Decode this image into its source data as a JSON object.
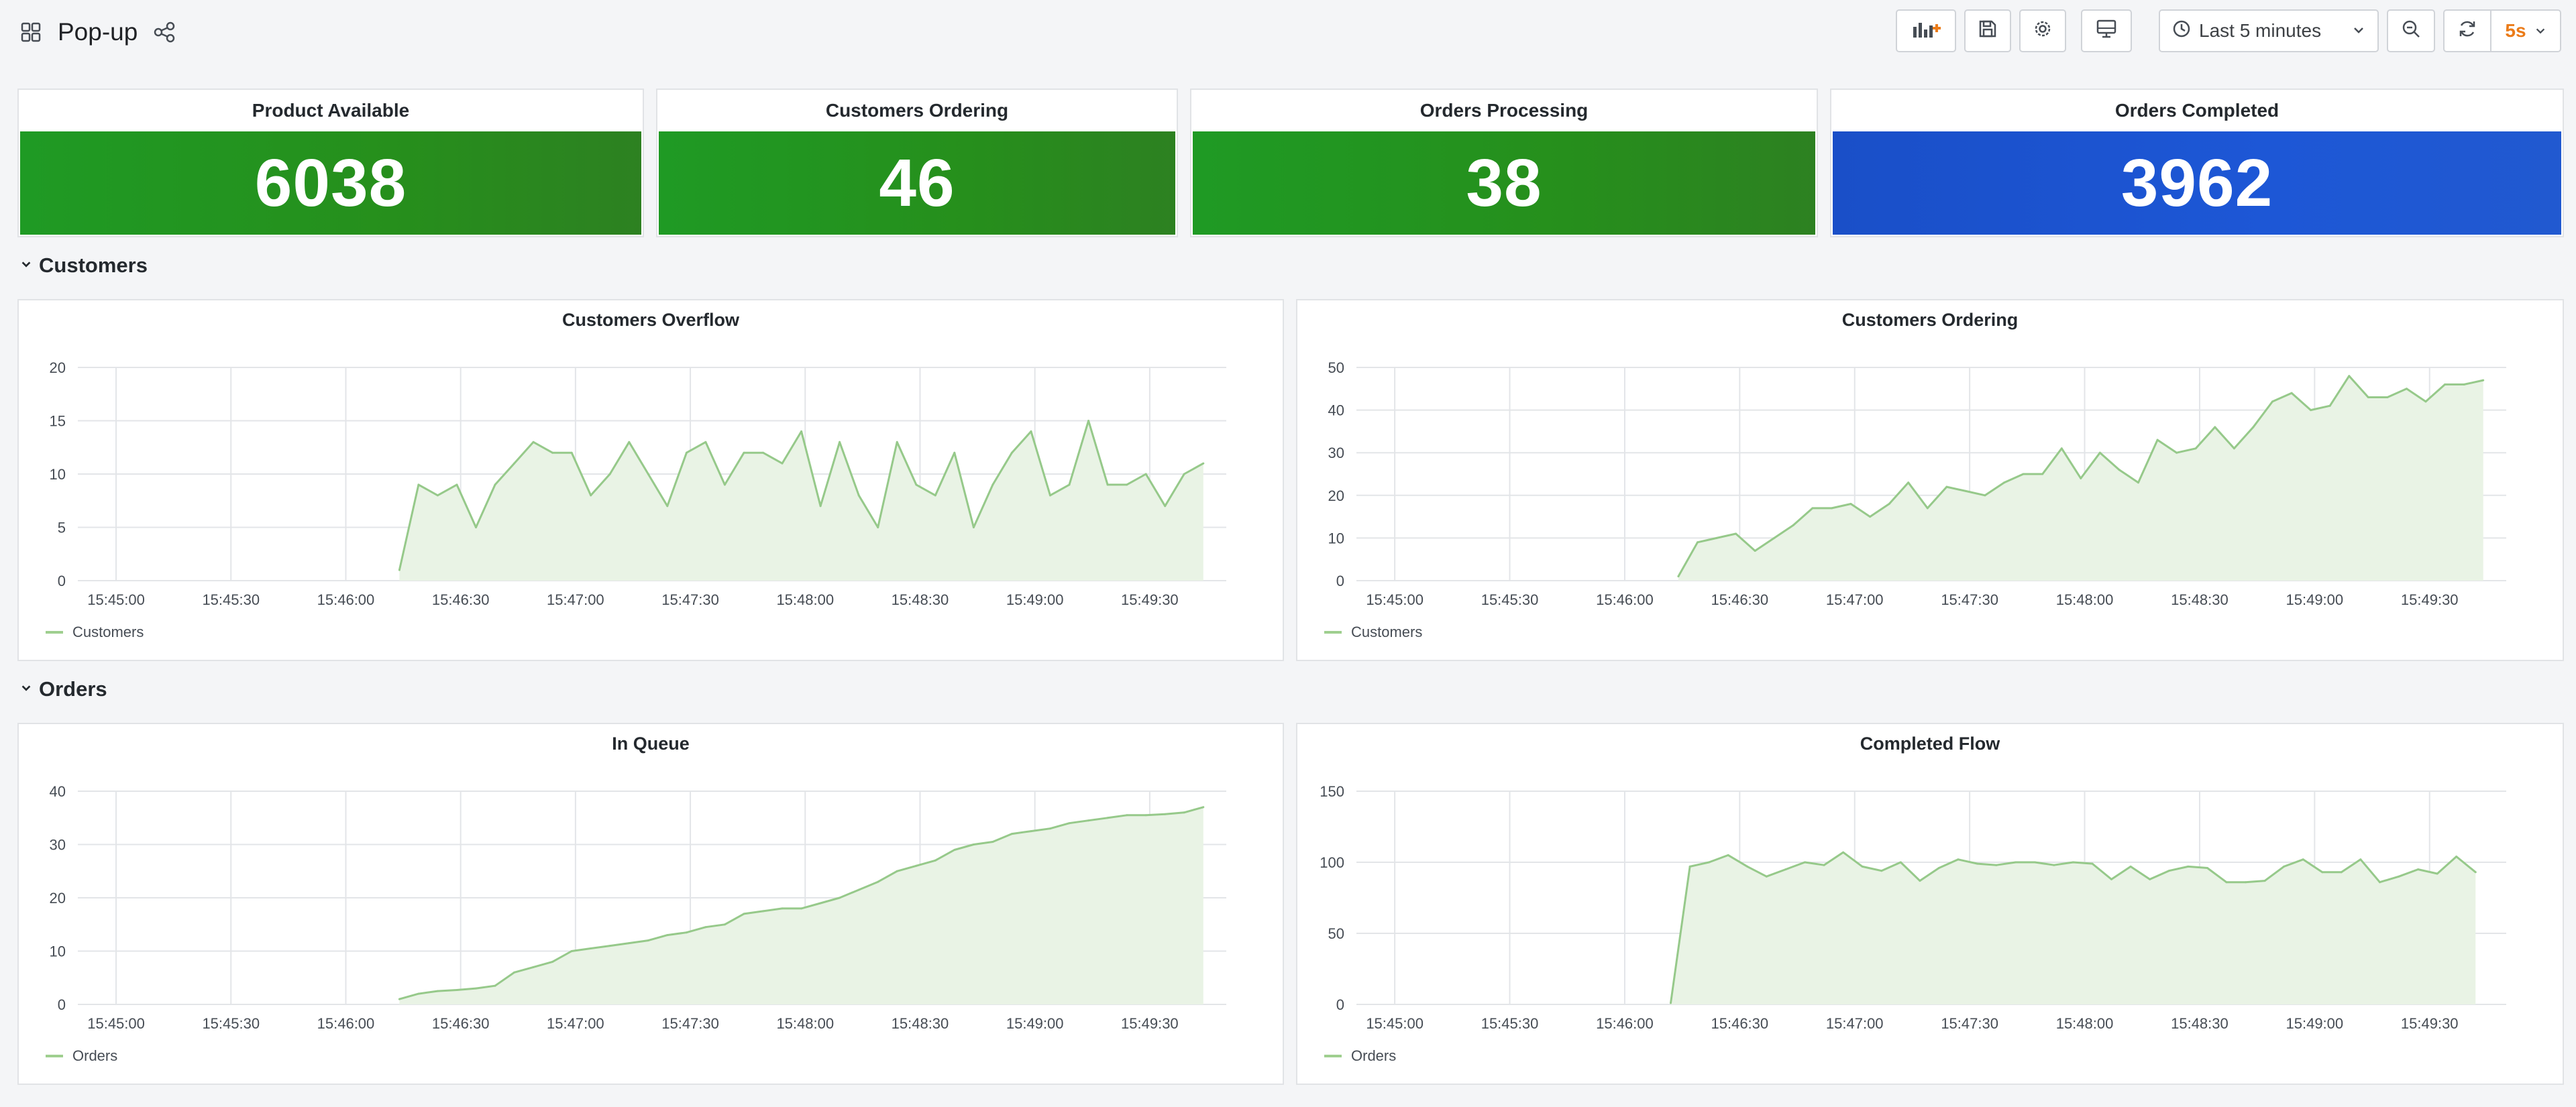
{
  "app": {
    "title": "Pop-up",
    "icons": {
      "menu": "dashboard-grid-icon",
      "share": "share-icon"
    }
  },
  "toolbar": {
    "add_panel_icon": "add-panel-icon",
    "save_icon": "save-icon",
    "settings_icon": "gear-icon",
    "tv_icon": "tv-mode-icon",
    "time_range": "Last 5 minutes",
    "zoom_icon": "zoom-out-icon",
    "refresh_icon": "refresh-icon",
    "refresh_interval": "5s"
  },
  "stats": [
    {
      "title": "Product Available",
      "value": "6038",
      "color": "#1f9a24"
    },
    {
      "title": "Customers Ordering",
      "value": "46",
      "color": "#1f9a24"
    },
    {
      "title": "Orders Processing",
      "value": "38",
      "color": "#1f9a24"
    },
    {
      "title": "Orders Completed",
      "value": "3962",
      "color": "#1a4fc8"
    }
  ],
  "rows": {
    "customers": "Customers",
    "orders": "Orders"
  },
  "colors": {
    "series_line": "#96c98a",
    "series_fill": "#e9f3e5",
    "grid": "#e3e5e8"
  },
  "panels": {
    "customers_overflow": {
      "title": "Customers Overflow",
      "legend": "Customers"
    },
    "customers_ordering": {
      "title": "Customers Ordering",
      "legend": "Customers"
    },
    "in_queue": {
      "title": "In Queue",
      "legend": "Orders"
    },
    "completed_flow": {
      "title": "Completed Flow",
      "legend": "Orders"
    }
  },
  "chart_data": [
    {
      "type": "area",
      "title": "Customers Overflow",
      "xlabel": "",
      "ylabel": "",
      "x_ticks": [
        "15:45:00",
        "15:45:30",
        "15:46:00",
        "15:46:30",
        "15:47:00",
        "15:47:30",
        "15:48:00",
        "15:48:30",
        "15:49:00",
        "15:49:30"
      ],
      "y_ticks": [
        0,
        5,
        10,
        15,
        20
      ],
      "xlim": [
        "15:44:50",
        "15:49:50"
      ],
      "ylim": [
        0,
        20
      ],
      "grid": true,
      "legend_position": "bottom-left",
      "series": [
        {
          "name": "Customers",
          "x": [
            "15:46:14",
            "15:46:19",
            "15:46:24",
            "15:46:29",
            "15:46:34",
            "15:46:39",
            "15:46:44",
            "15:46:49",
            "15:46:54",
            "15:46:59",
            "15:47:04",
            "15:47:09",
            "15:47:14",
            "15:47:19",
            "15:47:24",
            "15:47:29",
            "15:47:34",
            "15:47:39",
            "15:47:44",
            "15:47:49",
            "15:47:54",
            "15:47:59",
            "15:48:04",
            "15:48:09",
            "15:48:14",
            "15:48:19",
            "15:48:24",
            "15:48:29",
            "15:48:34",
            "15:48:39",
            "15:48:44",
            "15:48:49",
            "15:48:54",
            "15:48:59",
            "15:49:04",
            "15:49:09",
            "15:49:14",
            "15:49:19",
            "15:49:24",
            "15:49:29",
            "15:49:34",
            "15:49:39",
            "15:49:44"
          ],
          "values": [
            1,
            9,
            8,
            9,
            5,
            9,
            11,
            13,
            12,
            12,
            8,
            10,
            13,
            10,
            7,
            12,
            13,
            9,
            12,
            12,
            11,
            14,
            7,
            13,
            8,
            5,
            13,
            9,
            8,
            12,
            5,
            9,
            12,
            14,
            8,
            9,
            15,
            9,
            9,
            10,
            7,
            10,
            11
          ]
        }
      ]
    },
    {
      "type": "area",
      "title": "Customers Ordering",
      "xlabel": "",
      "ylabel": "",
      "x_ticks": [
        "15:45:00",
        "15:45:30",
        "15:46:00",
        "15:46:30",
        "15:47:00",
        "15:47:30",
        "15:48:00",
        "15:48:30",
        "15:49:00",
        "15:49:30"
      ],
      "y_ticks": [
        0,
        10,
        20,
        30,
        40,
        50
      ],
      "xlim": [
        "15:44:50",
        "15:49:50"
      ],
      "ylim": [
        0,
        50
      ],
      "grid": true,
      "legend_position": "bottom-left",
      "series": [
        {
          "name": "Customers",
          "x": [
            "15:46:14",
            "15:46:19",
            "15:46:24",
            "15:46:29",
            "15:46:34",
            "15:46:39",
            "15:46:44",
            "15:46:49",
            "15:46:54",
            "15:46:59",
            "15:47:04",
            "15:47:09",
            "15:47:14",
            "15:47:19",
            "15:47:24",
            "15:47:29",
            "15:47:34",
            "15:47:39",
            "15:47:44",
            "15:47:49",
            "15:47:54",
            "15:47:59",
            "15:48:04",
            "15:48:09",
            "15:48:14",
            "15:48:19",
            "15:48:24",
            "15:48:29",
            "15:48:34",
            "15:48:39",
            "15:48:44",
            "15:48:49",
            "15:48:54",
            "15:48:59",
            "15:49:04",
            "15:49:09",
            "15:49:14",
            "15:49:19",
            "15:49:24",
            "15:49:29",
            "15:49:34",
            "15:49:39",
            "15:49:44"
          ],
          "values": [
            1,
            9,
            10,
            11,
            7,
            10,
            13,
            17,
            17,
            18,
            15,
            18,
            23,
            17,
            22,
            21,
            20,
            23,
            25,
            25,
            31,
            24,
            30,
            26,
            23,
            33,
            30,
            31,
            36,
            31,
            36,
            42,
            44,
            40,
            41,
            48,
            43,
            43,
            45,
            42,
            46,
            46,
            47
          ]
        }
      ]
    },
    {
      "type": "area",
      "title": "In Queue",
      "xlabel": "",
      "ylabel": "",
      "x_ticks": [
        "15:45:00",
        "15:45:30",
        "15:46:00",
        "15:46:30",
        "15:47:00",
        "15:47:30",
        "15:48:00",
        "15:48:30",
        "15:49:00",
        "15:49:30"
      ],
      "y_ticks": [
        0,
        10,
        20,
        30,
        40
      ],
      "xlim": [
        "15:44:50",
        "15:49:50"
      ],
      "ylim": [
        0,
        40
      ],
      "grid": true,
      "legend_position": "bottom-left",
      "series": [
        {
          "name": "Orders",
          "x": [
            "15:46:14",
            "15:46:19",
            "15:46:24",
            "15:46:29",
            "15:46:34",
            "15:46:39",
            "15:46:44",
            "15:46:49",
            "15:46:54",
            "15:46:59",
            "15:47:04",
            "15:47:09",
            "15:47:14",
            "15:47:19",
            "15:47:24",
            "15:47:29",
            "15:47:34",
            "15:47:39",
            "15:47:44",
            "15:47:49",
            "15:47:54",
            "15:47:59",
            "15:48:04",
            "15:48:09",
            "15:48:14",
            "15:48:19",
            "15:48:24",
            "15:48:29",
            "15:48:34",
            "15:48:39",
            "15:48:44",
            "15:48:49",
            "15:48:54",
            "15:48:59",
            "15:49:04",
            "15:49:09",
            "15:49:14",
            "15:49:19",
            "15:49:24",
            "15:49:29",
            "15:49:34",
            "15:49:39",
            "15:49:44"
          ],
          "values": [
            1,
            2,
            2.5,
            2.7,
            3,
            3.5,
            6,
            7,
            8,
            10,
            10.5,
            11,
            11.5,
            12,
            13,
            13.5,
            14.5,
            15,
            17,
            17.5,
            18,
            18,
            19,
            20,
            21.5,
            23,
            25,
            26,
            27,
            29,
            30,
            30.5,
            32,
            32.5,
            33,
            34,
            34.5,
            35,
            35.5,
            35.5,
            35.7,
            36,
            37
          ]
        }
      ]
    },
    {
      "type": "area",
      "title": "Completed Flow",
      "xlabel": "",
      "ylabel": "",
      "x_ticks": [
        "15:45:00",
        "15:45:30",
        "15:46:00",
        "15:46:30",
        "15:47:00",
        "15:47:30",
        "15:48:00",
        "15:48:30",
        "15:49:00",
        "15:49:30"
      ],
      "y_ticks": [
        0,
        50,
        100,
        150
      ],
      "xlim": [
        "15:44:50",
        "15:49:50"
      ],
      "ylim": [
        0,
        150
      ],
      "grid": true,
      "legend_position": "bottom-left",
      "series": [
        {
          "name": "Orders",
          "x": [
            "15:46:12",
            "15:46:17",
            "15:46:22",
            "15:46:27",
            "15:46:32",
            "15:46:37",
            "15:46:42",
            "15:46:47",
            "15:46:52",
            "15:46:57",
            "15:47:02",
            "15:47:07",
            "15:47:12",
            "15:47:17",
            "15:47:22",
            "15:47:27",
            "15:47:32",
            "15:47:37",
            "15:47:42",
            "15:47:47",
            "15:47:52",
            "15:47:57",
            "15:48:02",
            "15:48:07",
            "15:48:12",
            "15:48:17",
            "15:48:22",
            "15:48:27",
            "15:48:32",
            "15:48:37",
            "15:48:42",
            "15:48:47",
            "15:48:52",
            "15:48:57",
            "15:49:02",
            "15:49:07",
            "15:49:12",
            "15:49:17",
            "15:49:22",
            "15:49:27",
            "15:49:32",
            "15:49:37",
            "15:49:42"
          ],
          "values": [
            1,
            97,
            100,
            105,
            97,
            90,
            95,
            100,
            98,
            107,
            97,
            94,
            100,
            87,
            96,
            102,
            99,
            98,
            100,
            100,
            98,
            100,
            99,
            88,
            97,
            88,
            94,
            97,
            96,
            86,
            86,
            87,
            97,
            102,
            93,
            93,
            102,
            86,
            90,
            95,
            92,
            104,
            93
          ]
        }
      ]
    }
  ]
}
